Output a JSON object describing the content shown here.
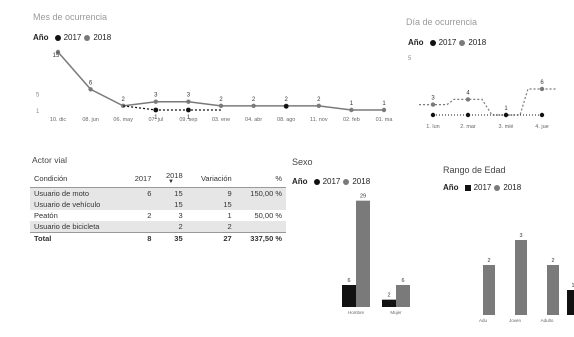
{
  "colors": {
    "y2017": "#111111",
    "y2018": "#7a7a7a",
    "title": "#9a9a9a"
  },
  "panel1": {
    "title": "Mes de ocurrencia",
    "legend": {
      "label": "Año",
      "items": [
        "2017",
        "2018"
      ]
    },
    "chart_data": {
      "type": "line",
      "categories": [
        "10. dic",
        "08. jun",
        "06. may",
        "07. jul",
        "09. sep",
        "03. ene",
        "04. abr",
        "08. ago",
        "11. nov",
        "02. feb",
        "01. ma"
      ],
      "series": [
        {
          "name": "2017",
          "values": [
            null,
            null,
            null,
            1,
            1,
            null,
            null,
            null,
            null,
            null,
            null
          ]
        },
        {
          "name": "2018",
          "values": [
            15,
            6,
            2,
            3,
            3,
            2,
            2,
            2,
            2,
            1,
            1
          ]
        }
      ],
      "yticks": [
        "5",
        "1"
      ]
    }
  },
  "panel2": {
    "title": "Día de ocurrencia",
    "legend": {
      "label": "Año",
      "items": [
        "2017",
        "2018"
      ]
    },
    "chart_data": {
      "type": "line",
      "categories": [
        "1. lun",
        "2. mar",
        "3. mié",
        "4. jue"
      ],
      "series": [
        {
          "name": "2017",
          "values": [
            1,
            1,
            1,
            1
          ]
        },
        {
          "name": "2018",
          "values": [
            3,
            4,
            1,
            6
          ]
        }
      ],
      "ytick": "5"
    }
  },
  "table": {
    "title": "Actor vial",
    "headers": [
      "Condición",
      "2017",
      "2018",
      "Variación",
      "%"
    ],
    "rows": [
      [
        "Usuario de moto",
        "6",
        "15",
        "9",
        "150,00 %"
      ],
      [
        "Usuario de vehículo",
        "",
        "15",
        "15",
        ""
      ],
      [
        "Peatón",
        "2",
        "3",
        "1",
        "50,00 %"
      ],
      [
        "Usuario de bicicleta",
        "",
        "2",
        "2",
        ""
      ]
    ],
    "total": [
      "Total",
      "8",
      "35",
      "27",
      "337,50 %"
    ]
  },
  "panel3": {
    "title": "Sexo",
    "legend": {
      "label": "Año",
      "items": [
        "2017",
        "2018"
      ]
    },
    "chart_data": {
      "type": "bar",
      "categories": [
        "Hombre",
        "Mujer"
      ],
      "series": [
        {
          "name": "2017",
          "values": [
            6,
            2
          ]
        },
        {
          "name": "2018",
          "values": [
            29,
            6
          ]
        }
      ],
      "ylim": [
        0,
        30
      ]
    }
  },
  "panel4": {
    "title": "Rango de Edad",
    "legend": {
      "label": "Año",
      "items": [
        "2017",
        "2018"
      ]
    },
    "chart_data": {
      "type": "bar",
      "categories": [
        "Adu",
        "Joven",
        "Adulto",
        "Ma"
      ],
      "series": [
        {
          "name": "2017",
          "values": [
            null,
            null,
            null,
            1
          ]
        },
        {
          "name": "2018",
          "values": [
            2,
            3,
            2,
            null
          ]
        }
      ],
      "ylim": [
        0,
        4
      ]
    }
  }
}
